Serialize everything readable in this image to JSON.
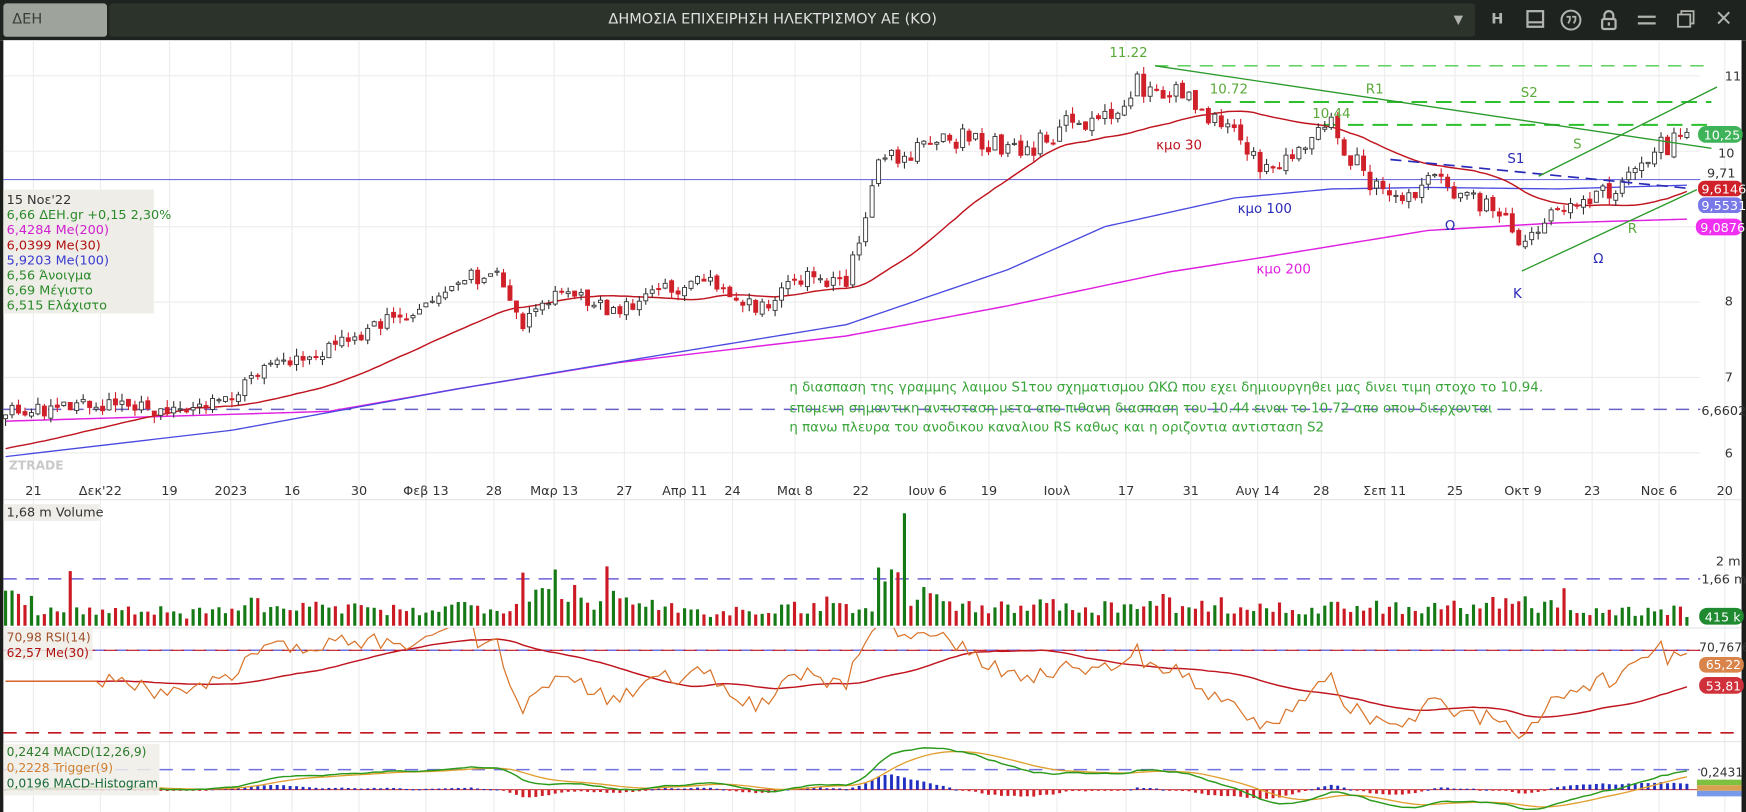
{
  "window": {
    "symbol": "ΔΕΗ",
    "title": "ΔΗΜΟΣΙΑ ΕΠΙΧΕΙΡΗΣΗ ΗΛΕΚΤΡΙΣΜΟΥ ΑΕ (ΚΟ)",
    "icons": [
      "dropdown-icon",
      "h-icon",
      "panel-icon",
      "quote-icon",
      "lock-icon",
      "menu-icon",
      "restore-icon",
      "close-icon"
    ],
    "h_label": "Η"
  },
  "info_box": {
    "date": "15 Νοε'22",
    "price_line": "6,66 ΔΕΗ.gr +0,15 2,30%",
    "ma200": "6,4284 Me(200)",
    "ma30": "6,0399 Me(30)",
    "ma100": "5,9203 Me(100)",
    "open": "6,56 Άνοιγμα",
    "high": "6,69 Μέγιστο",
    "low": "6,515 Ελάχιστο"
  },
  "watermark": "ZTRADE",
  "annotations": {
    "high_1122": "11.22",
    "level_1072": "10.72",
    "level_1044": "10.44",
    "r1": "R1",
    "s2": "S2",
    "s": "S",
    "s1": "S1",
    "r": "R",
    "k": "K",
    "omega_left": "Ω",
    "omega_right": "Ω",
    "ma30_label": "κμο 30",
    "ma100_label": "κμο 100",
    "ma200_label": "κμο 200",
    "comment_lines": [
      "η διασπαση της γραμμης λαιμου S1του σχηματισμου ΩΚΩ που εχει δημιουργηθει μας δινει τιμη στοχο το 10.94.",
      "επομενη σημαντικη αντισταση μετα απο πιθανη διασπαση του 10.44 ειναι το 10.72 απο οπου διερχονται",
      "η πανω πλευρα του ανοδικου καναλιου RS καθως και η οριζοντια αντισταση S2"
    ]
  },
  "price_axis": {
    "ticks": [
      "11",
      "10",
      "8",
      "7",
      "6"
    ],
    "last_price": "10,25",
    "level_971": "9,71",
    "ma30_value": "9,6146",
    "ma100_value": "9,5531",
    "ma200_value": "9,0876",
    "level_66602": "6,6602"
  },
  "x_axis": {
    "ticks": [
      "21",
      "Δεκ'22",
      "19",
      "2023",
      "16",
      "30",
      "Φεβ 13",
      "28",
      "Μαρ 13",
      "27",
      "Απρ 11",
      "24",
      "Μαι 8",
      "22",
      "Ιουν 6",
      "19",
      "Ιουλ",
      "17",
      "31",
      "Αυγ 14",
      "28",
      "Σεπ 11",
      "25",
      "Οκτ 9",
      "23",
      "Νοε 6",
      "20"
    ]
  },
  "volume_panel": {
    "label": "1,68 m Volume",
    "tick_2m": "2 m",
    "level": "1,66 m",
    "last": "415 k"
  },
  "rsi_panel": {
    "rsi_label": "70,98 RSI(14)",
    "ma_label": "62,57 Me(30)",
    "level_70": "70,7676",
    "rsi_last": "65,22",
    "ma_last": "53,81"
  },
  "macd_panel": {
    "macd_label": "0,2424 MACD(12,26,9)",
    "trigger_label": "0,2228 Trigger(9)",
    "hist_label": "0,0196 MACD-Histogram",
    "level": "0,2431"
  },
  "colors": {
    "up": "#ffffff",
    "down": "#d0202a",
    "ma30": "#c0141e",
    "ma100": "#4a4ae0",
    "ma200": "#e020e0",
    "annot_green": "#3aa53a",
    "vol_up": "#157a15",
    "vol_down": "#cc1a24",
    "rsi": "#d9742a",
    "macd": "#2a9a1a",
    "trigger": "#e0a030"
  },
  "chart_data": {
    "type": "candlestick",
    "period": "Nov 2022 – Nov 2023 (weekly closes, daily candles interpolated)",
    "ylim": [
      5.8,
      11.3
    ],
    "weekly_close": [
      6.6,
      6.55,
      6.6,
      6.65,
      6.6,
      6.5,
      6.55,
      6.8,
      7.1,
      7.2,
      7.35,
      7.55,
      7.8,
      8.0,
      8.2,
      8.45,
      7.7,
      8.1,
      8.0,
      7.85,
      8.1,
      8.25,
      8.2,
      7.95,
      8.1,
      8.4,
      8.2,
      9.8,
      10.0,
      10.1,
      10.2,
      10.0,
      10.1,
      10.4,
      10.5,
      10.9,
      10.8,
      10.6,
      10.2,
      9.7,
      10.0,
      10.3,
      9.7,
      9.3,
      9.6,
      9.5,
      9.2,
      8.8,
      9.3,
      9.3,
      9.6,
      10.0,
      10.2
    ],
    "last_close": 10.25,
    "ma30_seed": 6.04,
    "ma100_keypoints": [
      [
        0,
        5.95
      ],
      [
        7,
        6.3
      ],
      [
        14,
        6.85
      ],
      [
        21,
        7.35
      ],
      [
        26,
        7.7
      ],
      [
        31,
        8.43
      ],
      [
        34,
        9.0
      ],
      [
        38,
        9.38
      ],
      [
        41,
        9.5
      ],
      [
        44,
        9.52
      ],
      [
        48,
        9.5
      ],
      [
        52,
        9.55
      ]
    ],
    "ma200_keypoints": [
      [
        0,
        6.42
      ],
      [
        10,
        6.55
      ],
      [
        14,
        6.85
      ],
      [
        19,
        7.2
      ],
      [
        26,
        7.55
      ],
      [
        31,
        7.95
      ],
      [
        36,
        8.4
      ],
      [
        39,
        8.6
      ],
      [
        44,
        8.95
      ],
      [
        48,
        9.05
      ],
      [
        52,
        9.1
      ]
    ],
    "horizontal_levels": [
      11.22,
      10.72,
      10.44,
      9.71,
      6.6602
    ],
    "weekly_volume_m": [
      0.9,
      0.6,
      0.5,
      0.5,
      0.5,
      0.4,
      0.5,
      0.7,
      0.6,
      0.6,
      0.6,
      0.5,
      0.5,
      0.6,
      0.7,
      0.7,
      1.2,
      1.1,
      0.9,
      0.7,
      0.7,
      0.5,
      0.5,
      0.6,
      0.6,
      0.8,
      0.6,
      1.6,
      1.1,
      0.7,
      0.6,
      0.6,
      0.8,
      0.6,
      0.6,
      0.8,
      0.7,
      0.7,
      0.6,
      0.6,
      0.5,
      0.6,
      0.6,
      0.6,
      0.6,
      0.6,
      0.7,
      0.7,
      0.7,
      0.5,
      0.5,
      0.5,
      0.45
    ],
    "volume_spikes_m": [
      [
        2,
        1.75
      ],
      [
        16,
        1.7
      ],
      [
        17,
        1.8
      ],
      [
        18,
        1.9
      ],
      [
        27,
        3.6
      ],
      [
        48,
        1.2
      ]
    ],
    "rsi_levels": [
      70,
      30
    ],
    "macd_params": [
      12,
      26,
      9
    ]
  }
}
